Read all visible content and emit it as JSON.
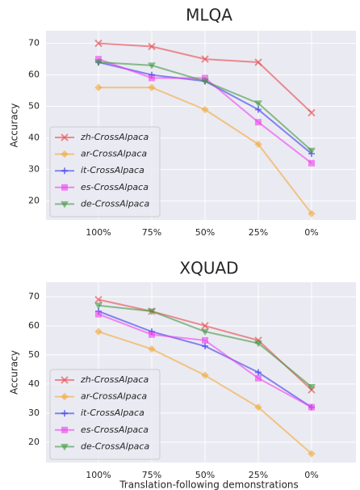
{
  "chart_data": [
    {
      "type": "line",
      "title": "MLQA",
      "ylabel": "Accuracy",
      "categories": [
        "100%",
        "75%",
        "50%",
        "25%",
        "0%"
      ],
      "ylim": [
        14,
        74
      ],
      "yticks": [
        20,
        30,
        40,
        50,
        60,
        70
      ],
      "grid": true,
      "legend": "lower left",
      "series": [
        {
          "name": "zh-CrossAlpaca",
          "color": "#e8474a",
          "marker": "x",
          "values": [
            70,
            69,
            65,
            64,
            48
          ]
        },
        {
          "name": "ar-CrossAlpaca",
          "color": "#f3a935",
          "marker": "D",
          "values": [
            56,
            56,
            49,
            38,
            16
          ]
        },
        {
          "name": "it-CrossAlpaca",
          "color": "#3c3cf0",
          "marker": "P",
          "values": [
            64,
            60,
            58,
            49,
            35
          ]
        },
        {
          "name": "es-CrossAlpaca",
          "color": "#ee40ee",
          "marker": "s",
          "values": [
            65,
            59,
            59,
            45,
            32
          ]
        },
        {
          "name": "de-CrossAlpaca",
          "color": "#3f983f",
          "marker": "v",
          "values": [
            64,
            63,
            58,
            51,
            36
          ]
        }
      ]
    },
    {
      "type": "line",
      "title": "XQUAD",
      "ylabel": "Accuracy",
      "xlabel": "Translation-following demonstrations",
      "categories": [
        "100%",
        "75%",
        "50%",
        "25%",
        "0%"
      ],
      "ylim": [
        13,
        75
      ],
      "yticks": [
        20,
        30,
        40,
        50,
        60,
        70
      ],
      "grid": true,
      "legend": "lower left",
      "series": [
        {
          "name": "zh-CrossAlpaca",
          "color": "#e8474a",
          "marker": "x",
          "values": [
            69,
            65,
            60,
            55,
            38
          ]
        },
        {
          "name": "ar-CrossAlpaca",
          "color": "#f3a935",
          "marker": "D",
          "values": [
            58,
            52,
            43,
            32,
            16
          ]
        },
        {
          "name": "it-CrossAlpaca",
          "color": "#3c3cf0",
          "marker": "P",
          "values": [
            65,
            58,
            53,
            44,
            32
          ]
        },
        {
          "name": "es-CrossAlpaca",
          "color": "#ee40ee",
          "marker": "s",
          "values": [
            64,
            57,
            55,
            42,
            32
          ]
        },
        {
          "name": "de-CrossAlpaca",
          "color": "#3f983f",
          "marker": "v",
          "values": [
            67,
            65,
            58,
            54,
            39
          ]
        }
      ]
    }
  ]
}
